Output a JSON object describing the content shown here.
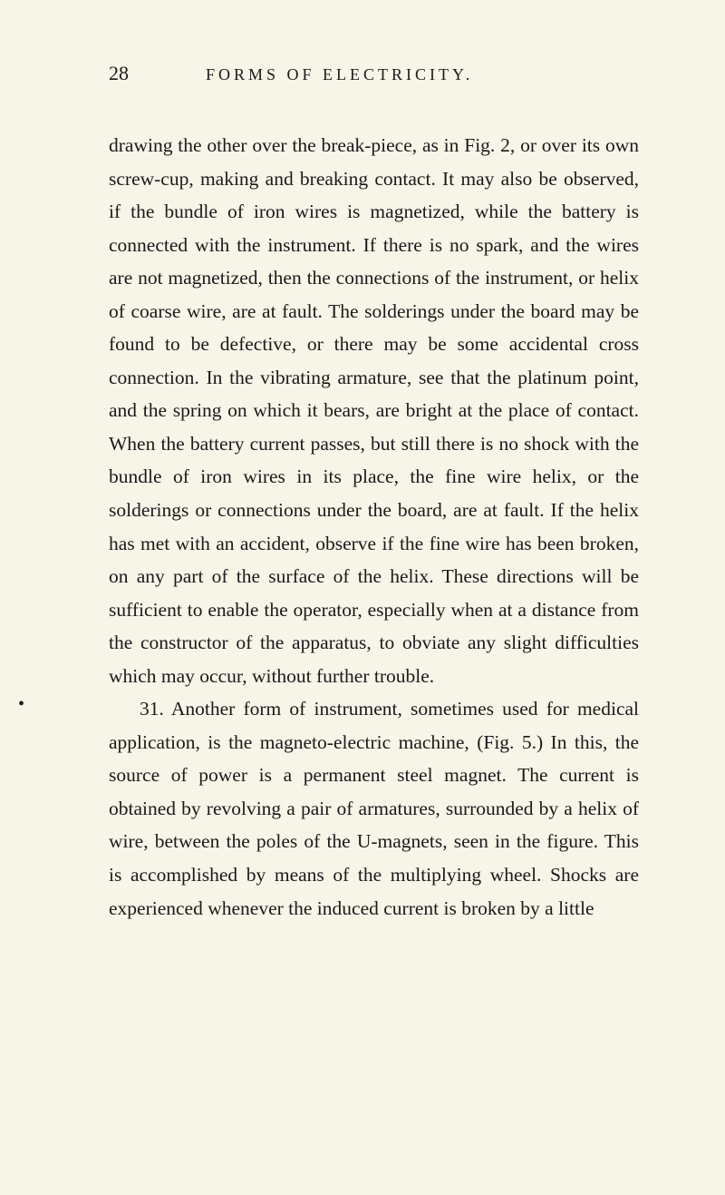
{
  "page_number": "28",
  "running_title": "FORMS OF ELECTRICITY.",
  "paragraphs": [
    {
      "type": "continuation",
      "text": "drawing the other over the break-piece, as in Fig. 2, or over its own screw-cup, making and breaking contact. It may also be observed, if the bundle of iron wires is magnetized, while the battery is connected with the instrument. If there is no spark, and the wires are not magnetized, then the connections of the instrument, or helix of coarse wire, are at fault. The solderings under the board may be found to be defective, or there may be some accidental cross connection. In the vibrating armature, see that the platinum point, and the spring on which it bears, are bright at the place of contact. When the battery current passes, but still there is no shock with the bundle of iron wires in its place, the fine wire helix, or the solderings or connections under the board, are at fault. If the helix has met with an accident, observe if the fine wire has been broken, on any part of the surface of the helix. These directions will be sufficient to enable the operator, especially when at a distance from the constructor of the apparatus, to obviate any slight difficulties which may occur, without further trouble."
    },
    {
      "type": "new",
      "text": "31. Another form of instrument, sometimes used for medical application, is the magneto-electric machine, (Fig. 5.) In this, the source of power is a permanent steel magnet. The current is obtained by revolving a pair of armatures, surrounded by a helix of wire, between the poles of the U-magnets, seen in the figure. This is accomplished by means of the multiplying wheel. Shocks are experienced whenever the induced current is broken by a little"
    }
  ],
  "colors": {
    "background": "#f7f4e8",
    "text": "#1a1a1a"
  },
  "typography": {
    "body_font_family": "Georgia, 'Times New Roman', serif",
    "body_font_size": 21.5,
    "body_line_height": 1.7,
    "page_number_font_size": 22,
    "running_title_font_size": 18,
    "running_title_letter_spacing": 4
  }
}
